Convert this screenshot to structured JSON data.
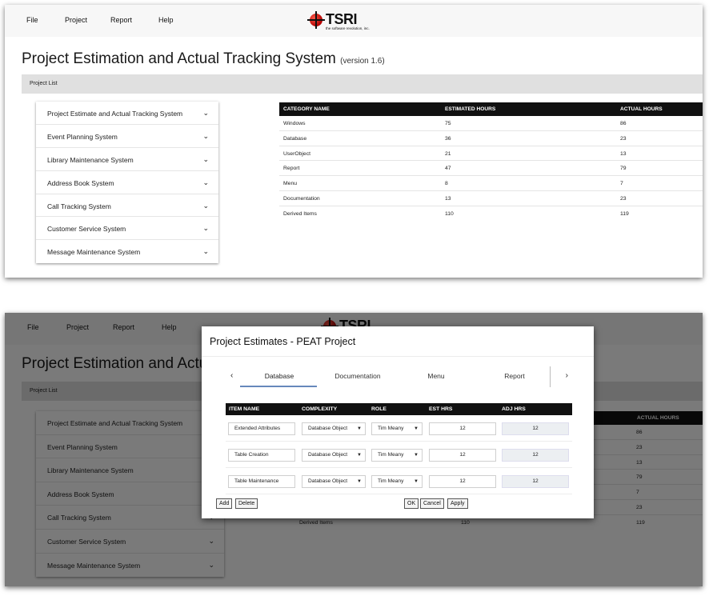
{
  "menu": {
    "file": "File",
    "project": "Project",
    "report": "Report",
    "help": "Help"
  },
  "logo": {
    "brand": "TSRI",
    "tagline": "the software revolution, inc."
  },
  "page": {
    "title": "Project Estimation and Actual Tracking System",
    "version": "(version 1.6)",
    "section": "Project List"
  },
  "projects": [
    "Project Estimate and Actual Tracking System",
    "Event Planning System",
    "Library Maintenance System",
    "Address Book System",
    "Call Tracking System",
    "Customer Service System",
    "Message Maintenance System"
  ],
  "category_table": {
    "headers": [
      "CATEGORY NAME",
      "ESTIMATED HOURS",
      "ACTUAL HOURS"
    ],
    "rows": [
      [
        "Windows",
        "75",
        "86"
      ],
      [
        "Database",
        "36",
        "23"
      ],
      [
        "UserObject",
        "21",
        "13"
      ],
      [
        "Report",
        "47",
        "79"
      ],
      [
        "Menu",
        "8",
        "7"
      ],
      [
        "Documentation",
        "13",
        "23"
      ],
      [
        "Derived Items",
        "110",
        "119"
      ]
    ]
  },
  "modal": {
    "title": "Project Estimates - PEAT Project",
    "tabs": [
      "Database",
      "Documentation",
      "Menu",
      "Report"
    ],
    "active_tab": "Database",
    "prev_icon": "‹",
    "next_icon": "›",
    "headers": [
      "ITEM NAME",
      "COMPLEXITY",
      "ROLE",
      "EST HRS",
      "ADJ HRS"
    ],
    "rows": [
      {
        "item": "Extended Attributes",
        "complexity": "Database Object",
        "role": "Tim Meany",
        "est": "12",
        "adj": "12"
      },
      {
        "item": "Table Creation",
        "complexity": "Database Object",
        "role": "Tim Meany",
        "est": "12",
        "adj": "12"
      },
      {
        "item": "Table Maintenance",
        "complexity": "Database Object",
        "role": "Tim Meany",
        "est": "12",
        "adj": "12"
      }
    ],
    "buttons": {
      "add": "Add",
      "delete": "Delete",
      "ok": "OK",
      "cancel": "Cancel",
      "apply": "Apply"
    }
  },
  "icons": {
    "chevron": "chevron-down-icon",
    "logo": "tsri-logo-icon"
  },
  "colors": {
    "header_black": "#111111",
    "tab_underline": "#6688bb",
    "overlay": "rgba(0,0,0,0.52)"
  }
}
